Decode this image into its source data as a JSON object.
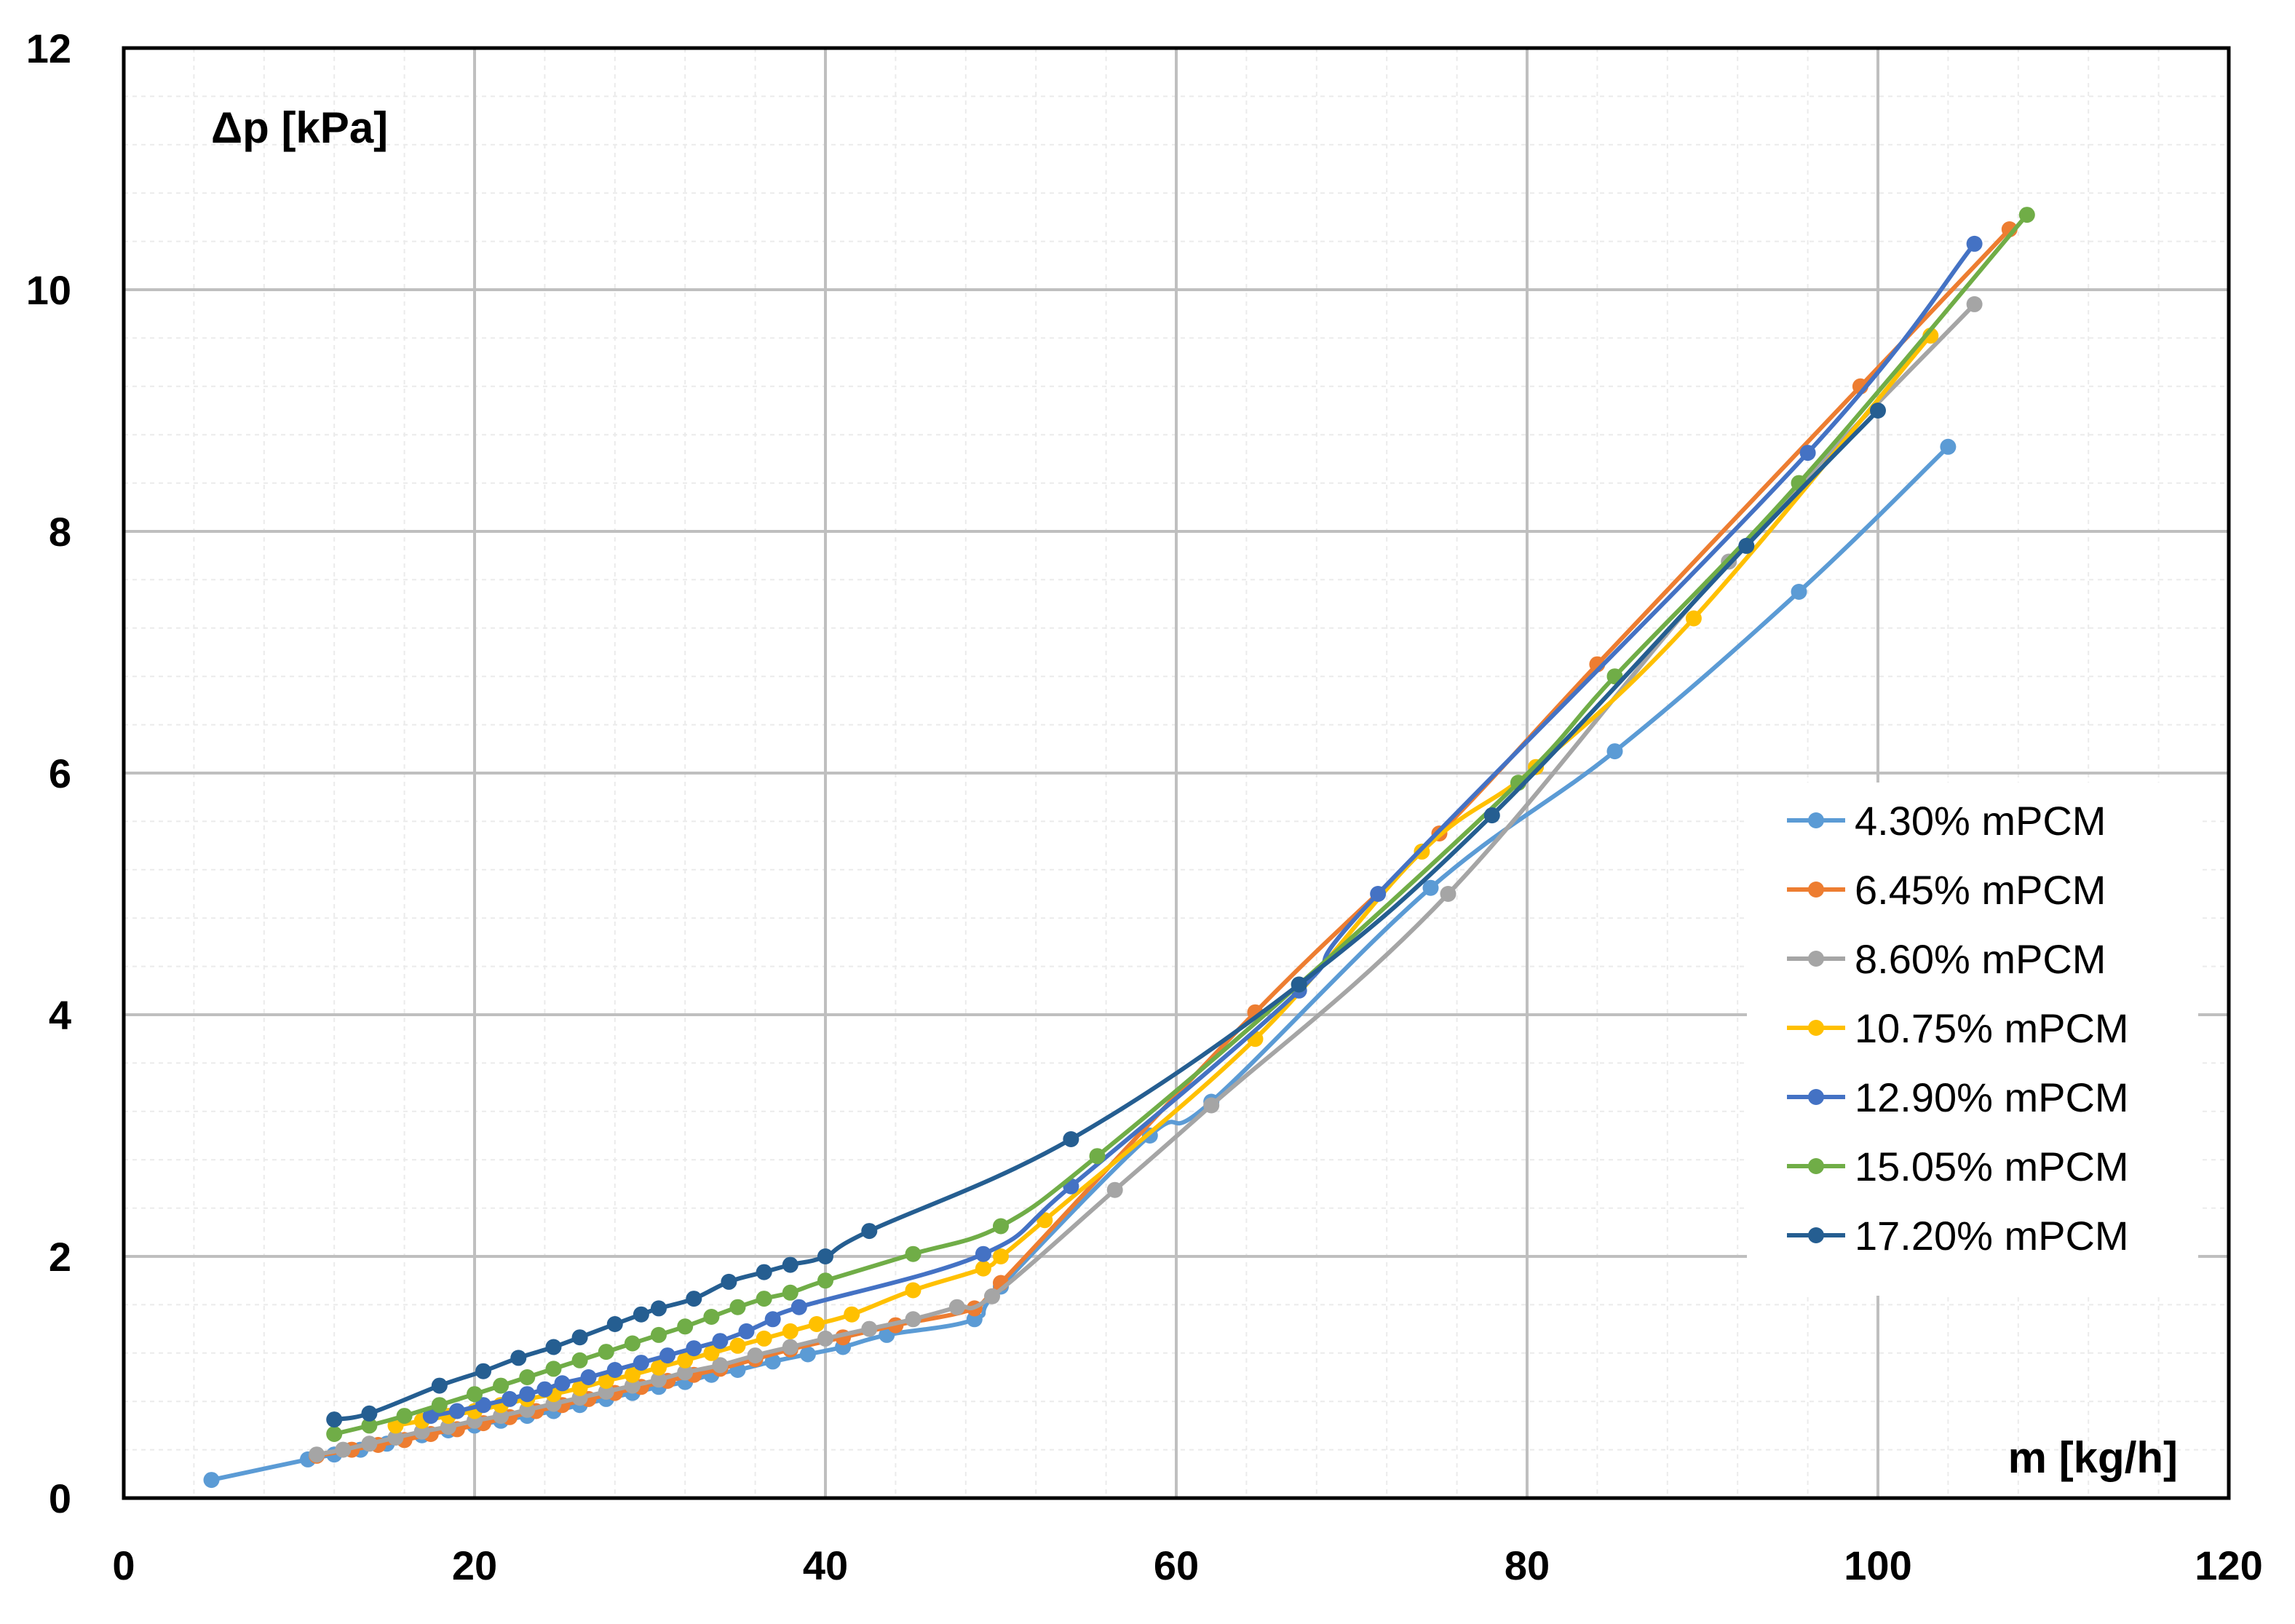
{
  "chart_data": {
    "type": "line",
    "title": "",
    "xlabel": "m [kg/h]",
    "ylabel": "Δp [kPa]",
    "xlim": [
      0,
      120
    ],
    "ylim": [
      0,
      12
    ],
    "x_ticks": [
      "0",
      "20",
      "40",
      "60",
      "80",
      "100",
      "120"
    ],
    "y_ticks": [
      "0",
      "2",
      "4",
      "6",
      "8",
      "10",
      "12"
    ],
    "grid": true,
    "legend": "right",
    "series": [
      {
        "name": "4.30% mPCM",
        "color": "#5B9BD5",
        "x": [
          5,
          10.5,
          12,
          13.5,
          15,
          17,
          18.5,
          20,
          21.5,
          23,
          24.5,
          26,
          27.5,
          29,
          30.5,
          32,
          33.5,
          35,
          37,
          39,
          41,
          43.5,
          48.5,
          50,
          58.5,
          62,
          74.5,
          85,
          95.5,
          104
        ],
        "y": [
          0.15,
          0.32,
          0.36,
          0.4,
          0.45,
          0.52,
          0.56,
          0.6,
          0.64,
          0.68,
          0.72,
          0.77,
          0.82,
          0.87,
          0.92,
          0.96,
          1.02,
          1.06,
          1.13,
          1.19,
          1.25,
          1.35,
          1.48,
          1.75,
          3.0,
          3.28,
          5.05,
          6.18,
          7.5,
          8.7
        ]
      },
      {
        "name": "6.45% mPCM",
        "color": "#ED7D31",
        "x": [
          11,
          13,
          14.5,
          16,
          17.5,
          19,
          20.5,
          22,
          23.5,
          25,
          26.5,
          28,
          29.5,
          31,
          32.5,
          34,
          36,
          38,
          41,
          44,
          48.5,
          50,
          64.5,
          75,
          84,
          99,
          107.5
        ],
        "y": [
          0.35,
          0.4,
          0.44,
          0.48,
          0.53,
          0.57,
          0.62,
          0.67,
          0.72,
          0.77,
          0.82,
          0.87,
          0.92,
          0.97,
          1.02,
          1.07,
          1.15,
          1.23,
          1.33,
          1.43,
          1.57,
          1.78,
          4.02,
          5.5,
          6.9,
          9.2,
          10.5
        ]
      },
      {
        "name": "8.60% mPCM",
        "color": "#A5A5A5",
        "x": [
          11,
          12.5,
          14,
          15.5,
          17,
          18.5,
          20,
          21.5,
          23,
          24.5,
          26,
          27.5,
          29,
          30.5,
          32,
          34,
          36,
          38,
          40,
          42.5,
          45,
          47.5,
          49.5,
          56.5,
          62,
          75.5,
          91.5,
          105.5
        ],
        "y": [
          0.36,
          0.4,
          0.45,
          0.5,
          0.55,
          0.59,
          0.64,
          0.68,
          0.73,
          0.78,
          0.83,
          0.88,
          0.93,
          0.98,
          1.04,
          1.1,
          1.18,
          1.25,
          1.32,
          1.4,
          1.48,
          1.58,
          1.67,
          2.55,
          3.25,
          5.0,
          7.75,
          9.88
        ]
      },
      {
        "name": "10.75% mPCM",
        "color": "#FFC000",
        "x": [
          15.5,
          17,
          18.5,
          20,
          21.5,
          23,
          24.5,
          26,
          27.5,
          29,
          30.5,
          32,
          33.5,
          35,
          36.5,
          38,
          39.5,
          41.5,
          45,
          49,
          50,
          52.5,
          64.5,
          74,
          80.5,
          89.5,
          103
        ],
        "y": [
          0.6,
          0.64,
          0.68,
          0.72,
          0.77,
          0.82,
          0.86,
          0.91,
          0.97,
          1.02,
          1.08,
          1.14,
          1.2,
          1.26,
          1.32,
          1.38,
          1.44,
          1.52,
          1.72,
          1.9,
          2.0,
          2.3,
          3.8,
          5.35,
          6.05,
          7.28,
          9.62
        ]
      },
      {
        "name": "12.90% mPCM",
        "color": "#4472C4",
        "x": [
          17.5,
          19,
          20.5,
          22,
          23,
          24,
          25,
          26.5,
          28,
          29.5,
          31,
          32.5,
          34,
          35.5,
          37,
          38.5,
          49,
          54,
          67,
          71.5,
          96,
          105.5
        ],
        "y": [
          0.68,
          0.72,
          0.77,
          0.82,
          0.86,
          0.9,
          0.95,
          1.0,
          1.06,
          1.12,
          1.18,
          1.24,
          1.3,
          1.38,
          1.48,
          1.58,
          2.02,
          2.58,
          4.2,
          5.0,
          8.65,
          10.38
        ]
      },
      {
        "name": "15.05% mPCM",
        "color": "#70AD47",
        "x": [
          12,
          14,
          16,
          18,
          20,
          21.5,
          23,
          24.5,
          26,
          27.5,
          29,
          30.5,
          32,
          33.5,
          35,
          36.5,
          38,
          40,
          45,
          50,
          55.5,
          67,
          79.5,
          85,
          95.5,
          108.5
        ],
        "y": [
          0.53,
          0.6,
          0.68,
          0.77,
          0.86,
          0.93,
          1.0,
          1.07,
          1.14,
          1.21,
          1.28,
          1.35,
          1.42,
          1.5,
          1.58,
          1.65,
          1.7,
          1.8,
          2.02,
          2.25,
          2.83,
          4.25,
          5.92,
          6.8,
          8.4,
          10.62
        ]
      },
      {
        "name": "17.20% mPCM",
        "color": "#255E91",
        "x": [
          12,
          14,
          18,
          20.5,
          22.5,
          24.5,
          26,
          28,
          29.5,
          30.5,
          32.5,
          34.5,
          36.5,
          38,
          40,
          42.5,
          54,
          67,
          78,
          92.5,
          100
        ],
        "y": [
          0.65,
          0.7,
          0.93,
          1.05,
          1.16,
          1.25,
          1.33,
          1.44,
          1.52,
          1.57,
          1.65,
          1.79,
          1.87,
          1.93,
          2.0,
          2.21,
          2.97,
          4.25,
          5.65,
          7.88,
          9.0
        ]
      }
    ]
  }
}
